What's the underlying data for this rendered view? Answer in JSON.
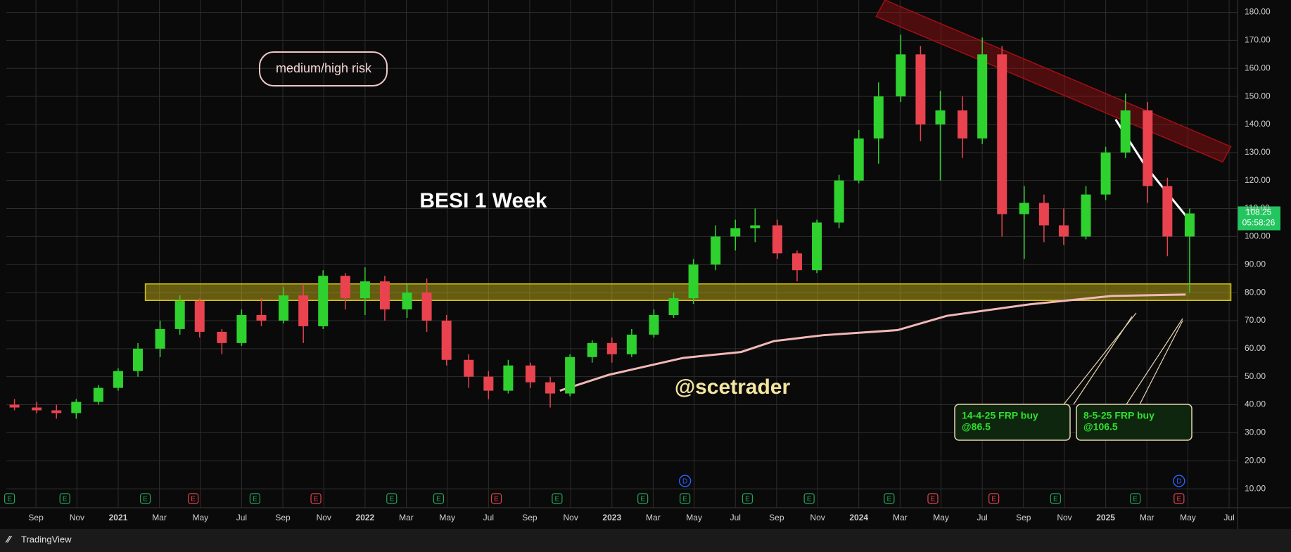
{
  "chart_data": {
    "type": "candlestick",
    "title": "BESI 1 Week",
    "annotations": [
      "medium/high risk",
      "@scetrader"
    ],
    "brand": "TradingView",
    "xlim": [
      2020.547,
      2025.534
    ],
    "ylim": [
      3.25,
      184.4
    ],
    "grid": true,
    "up_color": "#2fd12f",
    "down_color": "#e8434f",
    "xticks": [
      {
        "value": 2020.667,
        "label": "Sep"
      },
      {
        "value": 2020.833,
        "label": "Nov"
      },
      2021,
      {
        "value": 2021.167,
        "label": "Mar"
      },
      {
        "value": 2021.333,
        "label": "May"
      },
      {
        "value": 2021.5,
        "label": "Jul"
      },
      {
        "value": 2021.667,
        "label": "Sep"
      },
      {
        "value": 2021.833,
        "label": "Nov"
      },
      2022,
      {
        "value": 2022.167,
        "label": "Mar"
      },
      {
        "value": 2022.333,
        "label": "May"
      },
      {
        "value": 2022.5,
        "label": "Jul"
      },
      {
        "value": 2022.667,
        "label": "Sep"
      },
      {
        "value": 2022.833,
        "label": "Nov"
      },
      2023,
      {
        "value": 2023.167,
        "label": "Mar"
      },
      {
        "value": 2023.333,
        "label": "May"
      },
      {
        "value": 2023.5,
        "label": "Jul"
      },
      {
        "value": 2023.667,
        "label": "Sep"
      },
      {
        "value": 2023.833,
        "label": "Nov"
      },
      2024,
      {
        "value": 2024.167,
        "label": "Mar"
      },
      {
        "value": 2024.333,
        "label": "May"
      },
      {
        "value": 2024.5,
        "label": "Jul"
      },
      {
        "value": 2024.667,
        "label": "Sep"
      },
      {
        "value": 2024.833,
        "label": "Nov"
      },
      2025,
      {
        "value": 2025.167,
        "label": "Mar"
      },
      {
        "value": 2025.333,
        "label": "May"
      },
      {
        "value": 2025.5,
        "label": "Jul"
      }
    ],
    "yticks": [
      {
        "value": 10,
        "label": "10.00"
      },
      {
        "value": 20,
        "label": "20.00"
      },
      {
        "value": 30,
        "label": "30.00"
      },
      {
        "value": 40,
        "label": "40.00"
      },
      {
        "value": 50,
        "label": "50.00"
      },
      {
        "value": 60,
        "label": "60.00"
      },
      {
        "value": 70,
        "label": "70.00"
      },
      {
        "value": 80,
        "label": "80.00"
      },
      {
        "value": 90,
        "label": "90.00"
      },
      {
        "value": 100,
        "label": "100.00"
      },
      {
        "value": 110,
        "label": "110.00"
      },
      {
        "value": 120,
        "label": "120.00"
      },
      {
        "value": 130,
        "label": "130.00"
      },
      {
        "value": 140,
        "label": "140.00"
      },
      {
        "value": 150,
        "label": "150.00"
      },
      {
        "value": 160,
        "label": "160.00"
      },
      {
        "value": 170,
        "label": "170.00"
      },
      {
        "value": 180,
        "label": "180.00"
      }
    ],
    "candles": {
      "x": [
        2020.58,
        2020.67,
        2020.75,
        2020.83,
        2020.92,
        2021.0,
        2021.08,
        2021.17,
        2021.25,
        2021.33,
        2021.42,
        2021.5,
        2021.58,
        2021.67,
        2021.75,
        2021.83,
        2021.92,
        2022.0,
        2022.08,
        2022.17,
        2022.25,
        2022.33,
        2022.42,
        2022.5,
        2022.58,
        2022.67,
        2022.75,
        2022.83,
        2022.92,
        2023.0,
        2023.08,
        2023.17,
        2023.25,
        2023.33,
        2023.42,
        2023.5,
        2023.58,
        2023.67,
        2023.75,
        2023.83,
        2023.92,
        2024.0,
        2024.08,
        2024.17,
        2024.25,
        2024.33,
        2024.42,
        2024.5,
        2024.58,
        2024.67,
        2024.75,
        2024.83,
        2024.92,
        2025.0,
        2025.08,
        2025.17,
        2025.25,
        2025.34
      ],
      "open": [
        40,
        39,
        38,
        37,
        41,
        46,
        52,
        60,
        67,
        77,
        66,
        62,
        72,
        70,
        79,
        68,
        86,
        78,
        84,
        74,
        80,
        70,
        56,
        50,
        45,
        54,
        48,
        44,
        57,
        62,
        58,
        65,
        72,
        78,
        90,
        100,
        103,
        104,
        94,
        88,
        105,
        120,
        135,
        150,
        165,
        140,
        145,
        135,
        165,
        108,
        112,
        104,
        100,
        115,
        130,
        145,
        118,
        100
      ],
      "high": [
        42,
        41,
        40,
        42,
        47,
        53,
        62,
        70,
        79,
        78,
        67,
        74,
        78,
        82,
        83,
        88,
        87,
        89,
        86,
        83,
        85,
        72,
        58,
        52,
        56,
        55,
        50,
        58,
        63,
        64,
        67,
        74,
        80,
        92,
        104,
        106,
        110,
        106,
        95,
        106,
        122,
        138,
        155,
        172,
        168,
        152,
        150,
        171,
        168,
        118,
        115,
        110,
        118,
        132,
        151,
        148,
        121,
        110
      ],
      "low": [
        38,
        37,
        35,
        35,
        40,
        45,
        50,
        57,
        65,
        64,
        58,
        61,
        68,
        69,
        62,
        67,
        74,
        72,
        70,
        71,
        66,
        54,
        46,
        42,
        44,
        46,
        39,
        43,
        55,
        55,
        57,
        64,
        71,
        76,
        88,
        95,
        98,
        92,
        84,
        87,
        103,
        119,
        126,
        148,
        134,
        120,
        128,
        133,
        100,
        92,
        98,
        97,
        99,
        113,
        128,
        112,
        93,
        80
      ],
      "close": [
        39,
        38,
        37,
        41,
        46,
        52,
        60,
        67,
        77,
        66,
        62,
        72,
        70,
        79,
        68,
        86,
        78,
        84,
        74,
        80,
        70,
        56,
        50,
        45,
        54,
        48,
        44,
        57,
        62,
        58,
        65,
        72,
        78,
        90,
        100,
        103,
        104,
        94,
        88,
        105,
        120,
        135,
        150,
        165,
        140,
        145,
        135,
        165,
        108,
        112,
        104,
        100,
        115,
        130,
        145,
        118,
        100,
        108.25
      ]
    },
    "lines": [
      {
        "color": "#f2b8b8",
        "x": [
          2022.789,
          2022.989,
          2023.289,
          2023.523,
          2023.656,
          2023.856,
          2024.156,
          2024.356,
          2024.69,
          2025.024,
          2025.324
        ],
        "values": [
          45,
          50.7,
          56.7,
          58.8,
          62.7,
          64.8,
          66.6,
          71.7,
          75.8,
          78.8,
          79.3
        ]
      },
      {
        "color": "#ffffff",
        "x": [
          2025.04,
          2025.157,
          2025.224,
          2025.324
        ],
        "values": [
          141.8,
          125.7,
          118.3,
          107.5
        ]
      }
    ],
    "zones": [
      {
        "color": "#d4c21a",
        "x": [
          2021.11,
          2025.507,
          2025.507,
          2021.11
        ],
        "y": [
          83.1,
          83.1,
          77.2,
          77.2
        ]
      },
      {
        "color": "#a00f14",
        "x": [
          2024.106,
          2025.507,
          2025.474,
          2024.07
        ],
        "y": [
          184.4,
          132.1,
          126.6,
          178.5
        ]
      }
    ],
    "last_price": 108.25,
    "countdown": "05:58:26",
    "callouts": [
      {
        "text": [
          "14-4-25 FRP buy",
          "@86.5"
        ]
      },
      {
        "text": [
          "8-5-25 FRP buy",
          "@106.5"
        ]
      }
    ],
    "events": [
      {
        "x": 2020.56,
        "label": "E",
        "color": "#26a65b"
      },
      {
        "x": 2020.784,
        "label": "E",
        "color": "#26a65b"
      },
      {
        "x": 2021.11,
        "label": "E",
        "color": "#26a65b"
      },
      {
        "x": 2021.304,
        "label": "E",
        "color": "#e8434f"
      },
      {
        "x": 2021.554,
        "label": "E",
        "color": "#26a65b"
      },
      {
        "x": 2021.801,
        "label": "E",
        "color": "#e8434f"
      },
      {
        "x": 2022.108,
        "label": "E",
        "color": "#26a65b"
      },
      {
        "x": 2022.298,
        "label": "E",
        "color": "#26a65b"
      },
      {
        "x": 2022.532,
        "label": "E",
        "color": "#e8434f"
      },
      {
        "x": 2022.778,
        "label": "E",
        "color": "#26a65b"
      },
      {
        "x": 2023.125,
        "label": "E",
        "color": "#26a65b"
      },
      {
        "x": 2023.296,
        "label": "E",
        "color": "#26a65b"
      },
      {
        "x": 2023.549,
        "label": "E",
        "color": "#26a65b"
      },
      {
        "x": 2023.799,
        "label": "E",
        "color": "#26a65b"
      },
      {
        "x": 2024.123,
        "label": "E",
        "color": "#26a65b"
      },
      {
        "x": 2024.3,
        "label": "E",
        "color": "#e8434f"
      },
      {
        "x": 2024.547,
        "label": "E",
        "color": "#e8434f"
      },
      {
        "x": 2024.797,
        "label": "E",
        "color": "#26a65b"
      },
      {
        "x": 2025.12,
        "label": "E",
        "color": "#26a65b"
      },
      {
        "x": 2025.297,
        "label": "E",
        "color": "#e8434f"
      }
    ],
    "dividends": [
      {
        "x": 2023.296,
        "label": "D",
        "color": "#2962ff"
      },
      {
        "x": 2025.297,
        "label": "D",
        "color": "#2962ff"
      }
    ]
  }
}
